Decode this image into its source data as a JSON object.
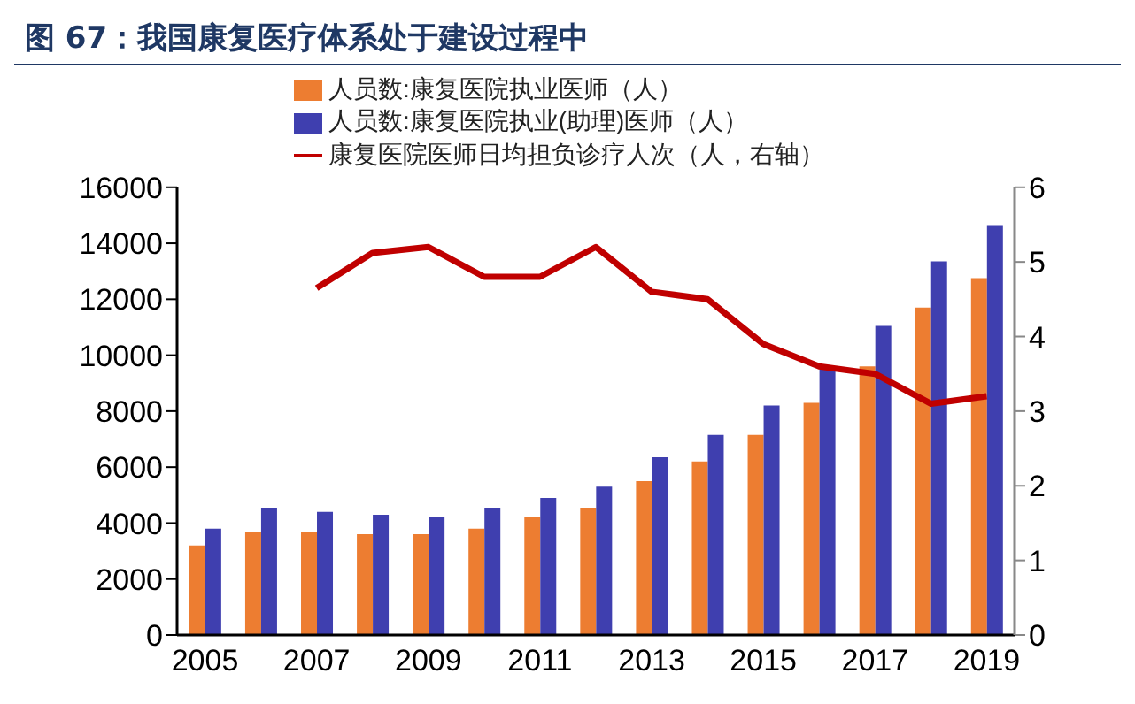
{
  "chart_data": {
    "type": "bar",
    "title": "图 67：我国康复医疗体系处于建设过程中",
    "categories": [
      "2005",
      null,
      "2007",
      null,
      "2009",
      null,
      "2011",
      null,
      "2013",
      null,
      "2015",
      null,
      "2017",
      null,
      "2019"
    ],
    "series": [
      {
        "name": "人员数:康复医院执业医师（人）",
        "color": "#ed7d31",
        "values": [
          3200,
          3700,
          3700,
          3600,
          3600,
          3800,
          4200,
          4550,
          5500,
          6200,
          7150,
          8300,
          9600,
          11700,
          12750
        ]
      },
      {
        "name": "人员数:康复医院执业(助理)医师（人）",
        "color": "#3f3faf",
        "values": [
          3800,
          4550,
          4400,
          4300,
          4200,
          4550,
          4900,
          5300,
          6350,
          7150,
          8200,
          9550,
          11050,
          13350,
          14650
        ]
      },
      {
        "name": "康复医院医师日均担负诊疗人次（人，右轴）",
        "type": "line",
        "axis": "y2",
        "color": "#c00000",
        "values": [
          null,
          null,
          4.65,
          5.12,
          5.2,
          4.8,
          4.8,
          5.2,
          4.6,
          4.5,
          3.9,
          3.6,
          3.5,
          3.1,
          3.2
        ]
      }
    ],
    "ylim": [
      0,
      16000
    ],
    "yticks": [
      0,
      2000,
      4000,
      6000,
      8000,
      10000,
      12000,
      14000,
      16000
    ],
    "y2lim": [
      0,
      6
    ],
    "y2ticks": [
      0,
      1,
      2,
      3,
      4,
      5,
      6
    ],
    "legend": "top",
    "marker": "none",
    "line_style": "solid"
  }
}
